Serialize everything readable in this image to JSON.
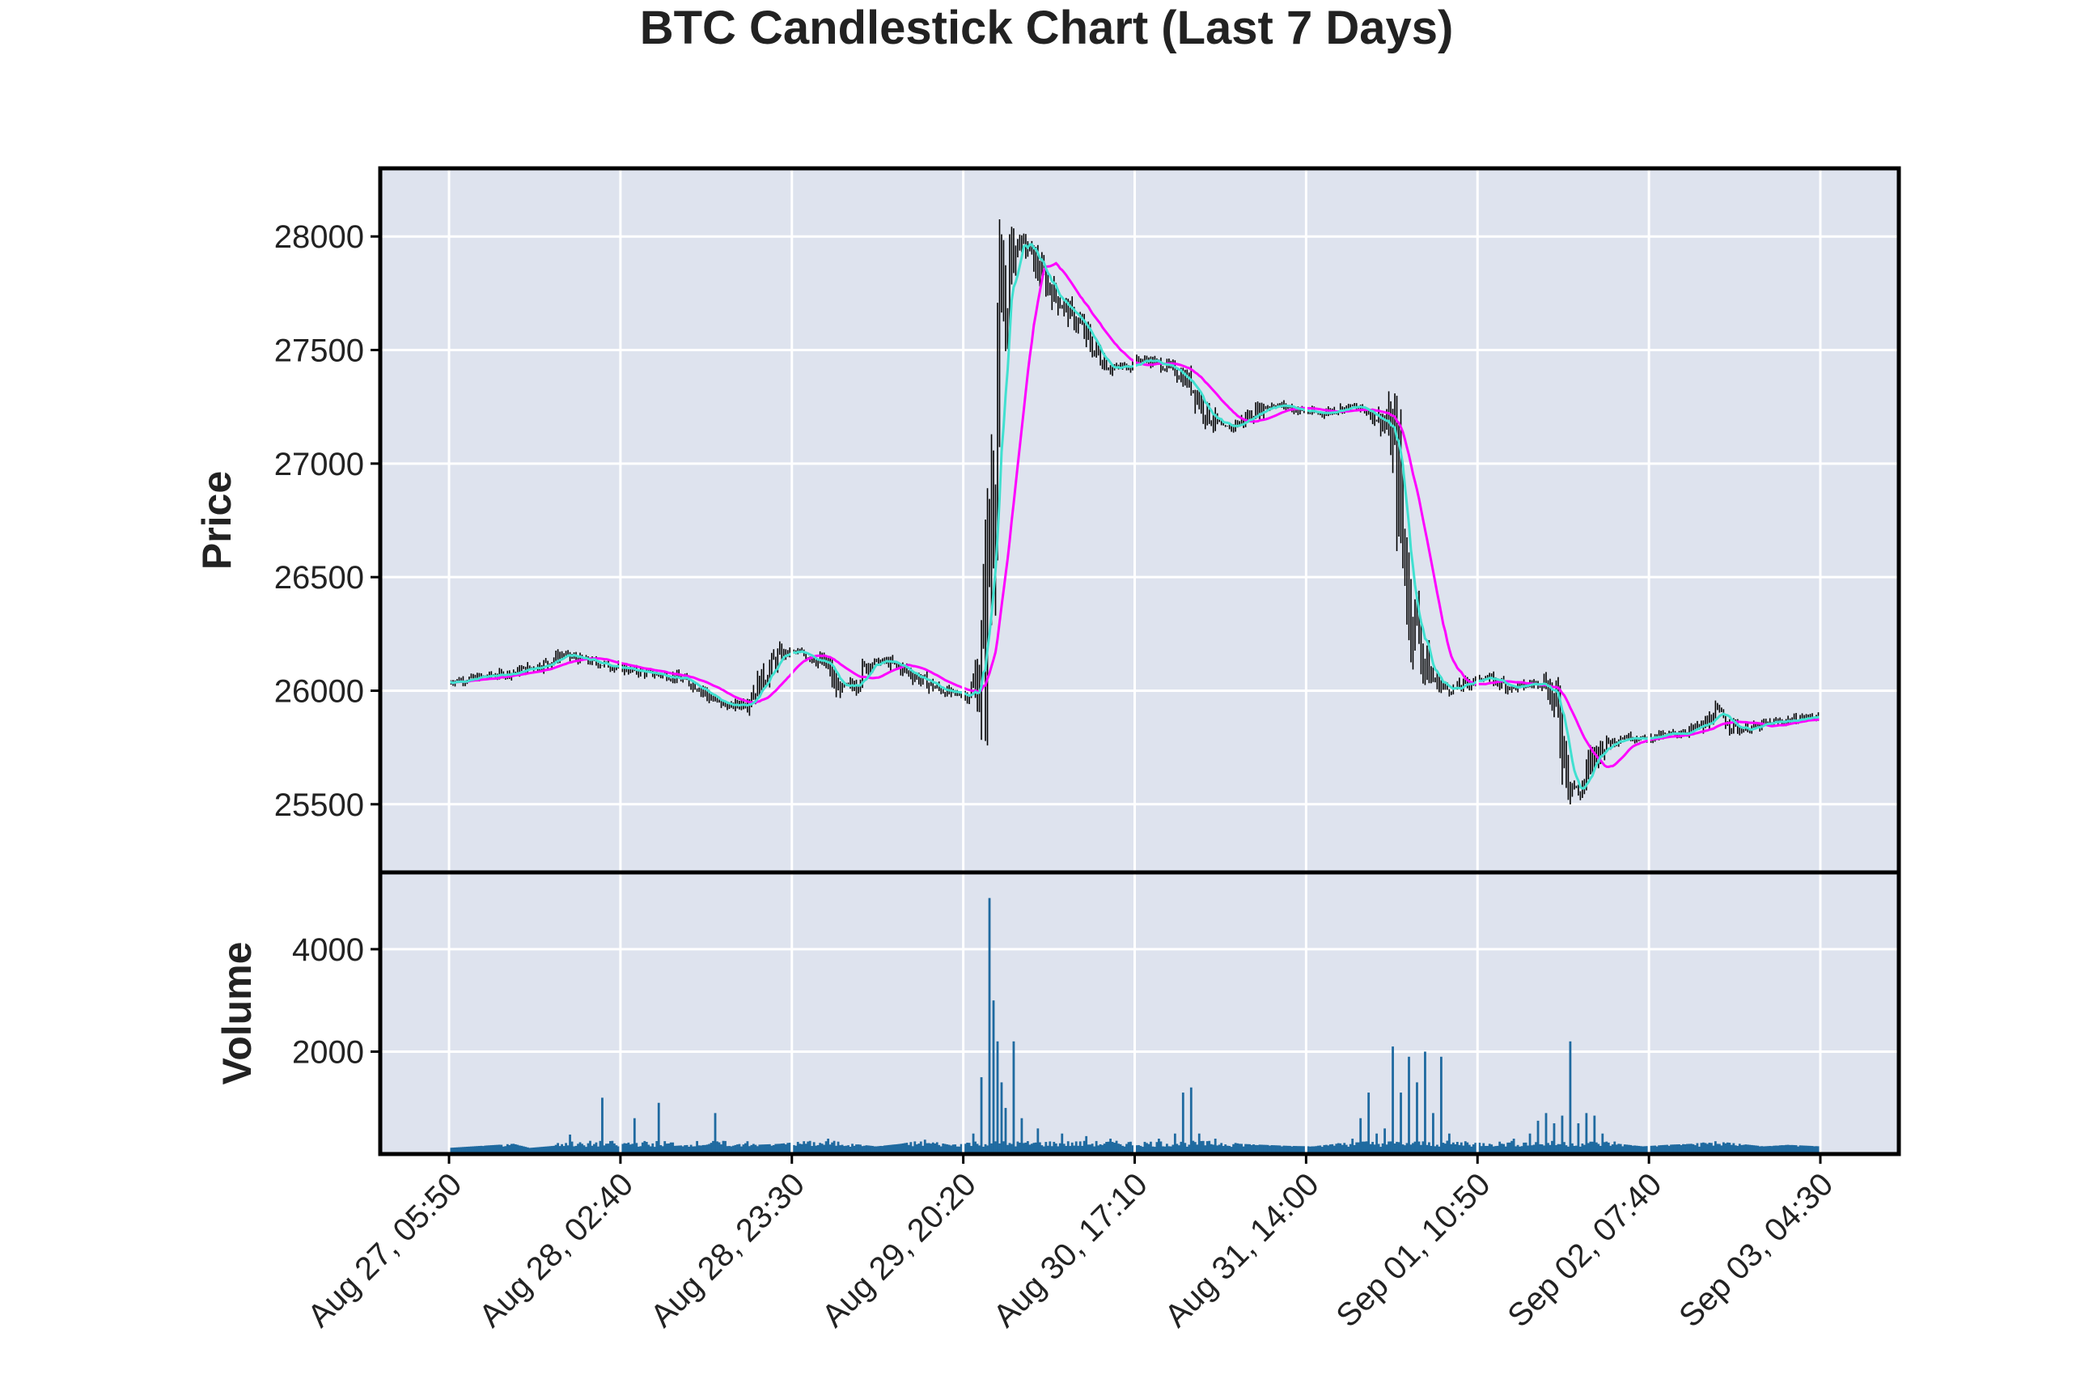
{
  "chart_data": {
    "type": "candlestick",
    "title": "BTC Candlestick Chart (Last 7 Days)",
    "price_panel": {
      "ylabel": "Price",
      "ylim": [
        25200,
        28300
      ],
      "yticks": [
        25500,
        26000,
        26500,
        27000,
        27500,
        28000
      ],
      "grid": true
    },
    "volume_panel": {
      "ylabel": "Volume",
      "ylim": [
        0,
        5500
      ],
      "yticks": [
        2000,
        4000
      ],
      "grid": true
    },
    "xlabels": [
      "Aug 27, 05:50",
      "Aug 28, 02:40",
      "Aug 28, 23:30",
      "Aug 29, 20:20",
      "Aug 30, 17:10",
      "Aug 31, 14:00",
      "Sep 01, 10:50",
      "Sep 02, 07:40",
      "Sep 03, 04:30"
    ],
    "colors": {
      "panel_bg": "#dee3ee",
      "grid": "#ffffff",
      "candle": "#000000",
      "ma_short": "#40e0d0",
      "ma_long": "#ff00ff",
      "volume": "#1f6aa0"
    },
    "price_close": [
      [
        0,
        26040
      ],
      [
        4,
        26060
      ],
      [
        8,
        26080
      ],
      [
        12,
        26120
      ],
      [
        14,
        26160
      ],
      [
        16,
        26140
      ],
      [
        20,
        26110
      ],
      [
        24,
        26080
      ],
      [
        28,
        26060
      ],
      [
        31,
        26020
      ],
      [
        33,
        25950
      ],
      [
        35,
        25930
      ],
      [
        37,
        25960
      ],
      [
        39,
        26060
      ],
      [
        41,
        26160
      ],
      [
        43,
        26170
      ],
      [
        45,
        26150
      ],
      [
        47,
        26100
      ],
      [
        48,
        26010
      ],
      [
        50,
        26020
      ],
      [
        52,
        26120
      ],
      [
        54,
        26130
      ],
      [
        56,
        26100
      ],
      [
        58,
        26060
      ],
      [
        60,
        26020
      ],
      [
        62,
        25990
      ],
      [
        64,
        25980
      ],
      [
        65,
        26010
      ],
      [
        66,
        26100
      ],
      [
        67,
        26600
      ],
      [
        68,
        27400
      ],
      [
        69,
        27700
      ],
      [
        70,
        27950
      ],
      [
        71,
        27980
      ],
      [
        72,
        27930
      ],
      [
        74,
        27800
      ],
      [
        76,
        27700
      ],
      [
        78,
        27620
      ],
      [
        80,
        27500
      ],
      [
        82,
        27420
      ],
      [
        84,
        27430
      ],
      [
        86,
        27460
      ],
      [
        88,
        27440
      ],
      [
        90,
        27410
      ],
      [
        92,
        27350
      ],
      [
        94,
        27220
      ],
      [
        96,
        27150
      ],
      [
        98,
        27180
      ],
      [
        100,
        27230
      ],
      [
        102,
        27260
      ],
      [
        104,
        27250
      ],
      [
        106,
        27230
      ],
      [
        108,
        27220
      ],
      [
        110,
        27240
      ],
      [
        112,
        27250
      ],
      [
        114,
        27230
      ],
      [
        116,
        27180
      ],
      [
        117,
        27100
      ],
      [
        118,
        26800
      ],
      [
        119,
        26400
      ],
      [
        120,
        26300
      ],
      [
        121,
        26120
      ],
      [
        122,
        26050
      ],
      [
        124,
        26000
      ],
      [
        126,
        26030
      ],
      [
        128,
        26060
      ],
      [
        130,
        26040
      ],
      [
        132,
        26010
      ],
      [
        134,
        26030
      ],
      [
        136,
        26040
      ],
      [
        137,
        25950
      ],
      [
        138,
        25800
      ],
      [
        139,
        25620
      ],
      [
        140,
        25540
      ],
      [
        141,
        25620
      ],
      [
        142,
        25720
      ],
      [
        144,
        25780
      ],
      [
        146,
        25800
      ],
      [
        148,
        25790
      ],
      [
        150,
        25800
      ],
      [
        152,
        25810
      ],
      [
        154,
        25830
      ],
      [
        156,
        25850
      ],
      [
        157,
        25920
      ],
      [
        158,
        25880
      ],
      [
        160,
        25830
      ],
      [
        162,
        25840
      ],
      [
        164,
        25860
      ],
      [
        166,
        25870
      ],
      [
        168,
        25880
      ],
      [
        170,
        25890
      ]
    ],
    "volume": [
      [
        0,
        120
      ],
      [
        3,
        150
      ],
      [
        6,
        180
      ],
      [
        8,
        200
      ],
      [
        10,
        120
      ],
      [
        13,
        160
      ],
      [
        15,
        380
      ],
      [
        17,
        140
      ],
      [
        19,
        1100
      ],
      [
        21,
        150
      ],
      [
        23,
        700
      ],
      [
        25,
        150
      ],
      [
        26,
        1000
      ],
      [
        28,
        160
      ],
      [
        30,
        180
      ],
      [
        33,
        800
      ],
      [
        35,
        150
      ],
      [
        37,
        250
      ],
      [
        38,
        180
      ],
      [
        41,
        200
      ],
      [
        44,
        250
      ],
      [
        47,
        300
      ],
      [
        50,
        200
      ],
      [
        53,
        150
      ],
      [
        56,
        200
      ],
      [
        59,
        280
      ],
      [
        62,
        180
      ],
      [
        64,
        200
      ],
      [
        65,
        400
      ],
      [
        66,
        1500
      ],
      [
        67,
        5000
      ],
      [
        67.5,
        3000
      ],
      [
        68,
        2200
      ],
      [
        68.5,
        1400
      ],
      [
        69,
        900
      ],
      [
        70,
        2200
      ],
      [
        71,
        700
      ],
      [
        73,
        500
      ],
      [
        76,
        400
      ],
      [
        79,
        350
      ],
      [
        82,
        300
      ],
      [
        85,
        250
      ],
      [
        88,
        300
      ],
      [
        90,
        400
      ],
      [
        91,
        1200
      ],
      [
        92,
        1300
      ],
      [
        93,
        400
      ],
      [
        95,
        300
      ],
      [
        98,
        200
      ],
      [
        101,
        180
      ],
      [
        104,
        160
      ],
      [
        107,
        150
      ],
      [
        110,
        200
      ],
      [
        112,
        300
      ],
      [
        113,
        700
      ],
      [
        114,
        1200
      ],
      [
        115,
        400
      ],
      [
        116,
        500
      ],
      [
        117,
        2100
      ],
      [
        118,
        1200
      ],
      [
        119,
        1900
      ],
      [
        120,
        1400
      ],
      [
        121,
        2000
      ],
      [
        122,
        800
      ],
      [
        123,
        1900
      ],
      [
        124,
        400
      ],
      [
        126,
        250
      ],
      [
        129,
        200
      ],
      [
        132,
        300
      ],
      [
        134,
        400
      ],
      [
        135,
        650
      ],
      [
        136,
        800
      ],
      [
        137,
        600
      ],
      [
        138,
        750
      ],
      [
        139,
        2200
      ],
      [
        140,
        600
      ],
      [
        141,
        800
      ],
      [
        142,
        750
      ],
      [
        143,
        400
      ],
      [
        145,
        200
      ],
      [
        148,
        150
      ],
      [
        151,
        180
      ],
      [
        154,
        200
      ],
      [
        157,
        250
      ],
      [
        160,
        200
      ],
      [
        163,
        150
      ],
      [
        166,
        180
      ],
      [
        170,
        150
      ]
    ]
  }
}
